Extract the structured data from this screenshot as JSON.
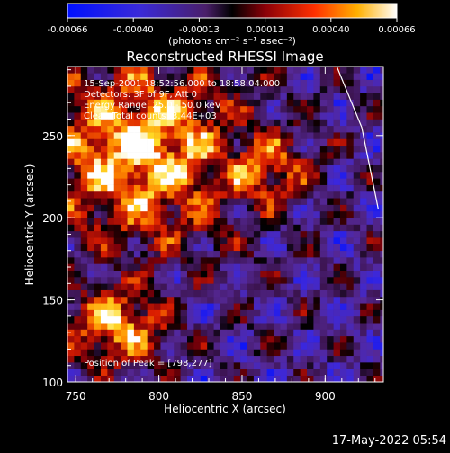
{
  "chart_data": {
    "type": "heatmap",
    "title": "Reconstructed RHESSI Image",
    "xlabel": "Heliocentric X (arcsec)",
    "ylabel": "Heliocentric Y (arcsec)",
    "xlim": [
      745,
      935
    ],
    "ylim": [
      100,
      292
    ],
    "x_ticks": [
      750,
      800,
      850,
      900
    ],
    "y_ticks": [
      100,
      150,
      200,
      250
    ],
    "colorbar": {
      "units": "(photons cm⁻² s⁻¹ asec⁻²)",
      "range": [
        -0.00066,
        0.00066
      ],
      "tick_labels": [
        "-0.00066",
        "-0.00040",
        "-0.00013",
        "0.00013",
        "0.00040",
        "0.00066"
      ]
    },
    "annotations": {
      "time_range": "15-Sep-2001 18:52:56.000 to 18:58:04.000",
      "detectors": "Detectors: 3F of 9F, Att 0",
      "energy": "Energy Range: 25.0 - 50.0 keV",
      "clean": "Clean    Total counts: 3.44E+03",
      "peak": "Position of Peak = [798,277]"
    },
    "limb_line": {
      "x": [
        907,
        922,
        932
      ],
      "y": [
        292,
        255,
        205
      ]
    },
    "pixel_size_arcsec": 4,
    "footer_date": "17-May-2022 05:54"
  }
}
